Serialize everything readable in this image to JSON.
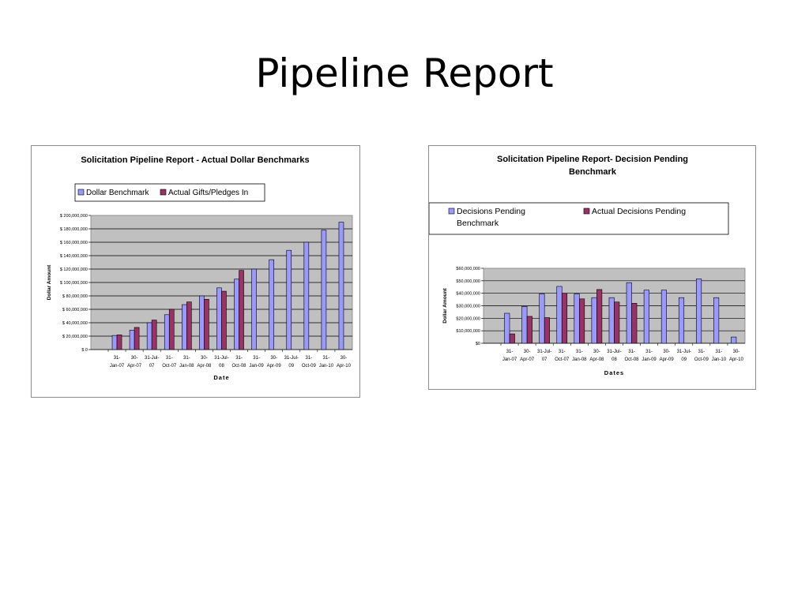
{
  "slide": {
    "title": "Pipeline Report"
  },
  "colors": {
    "benchmark": "#9999ff",
    "actual": "#993366",
    "plot_bg": "#c0c0c0"
  },
  "chart_data": [
    {
      "type": "bar",
      "title": "Solicitation Pipeline Report - Actual Dollar Benchmarks",
      "xlabel": "Date",
      "ylabel": "Dollar Amount",
      "ylim": [
        0,
        200000000
      ],
      "yticks": [
        "$ 0",
        "$ 20,000,000",
        "$ 40,000,000",
        "$ 60,000,000",
        "$ 80,000,000",
        "$ 100,000,000",
        "$ 120,000,000",
        "$ 140,000,000",
        "$ 160,000,000",
        "$ 180,000,000",
        "$ 200,000,000"
      ],
      "categories": [
        [
          "31-",
          "Jan-07"
        ],
        [
          "30-",
          "Apr-07"
        ],
        [
          "31-Jul-",
          "07"
        ],
        [
          "31-",
          "Oct-07"
        ],
        [
          "31-",
          "Jan-08"
        ],
        [
          "30-",
          "Apr-08"
        ],
        [
          "31-Jul-",
          "08"
        ],
        [
          "31-",
          "Oct-08"
        ],
        [
          "31-",
          "Jan-09"
        ],
        [
          "30-",
          "Apr-09"
        ],
        [
          "31-Jul-",
          "09"
        ],
        [
          "31-",
          "Oct-09"
        ],
        [
          "31-",
          "Jan-10"
        ],
        [
          "30-",
          "Apr-10"
        ]
      ],
      "legend_position": "top",
      "grid": true,
      "series": [
        {
          "name": "Dollar Benchmark",
          "values": [
            21000000,
            29000000,
            40000000,
            52000000,
            67000000,
            80000000,
            92000000,
            105000000,
            120000000,
            134000000,
            148000000,
            160000000,
            178000000,
            190000000
          ]
        },
        {
          "name": "Actual Gifts/Pledges In",
          "values": [
            22000000,
            33000000,
            44000000,
            60000000,
            71000000,
            75000000,
            87000000,
            118000000,
            null,
            null,
            null,
            null,
            null,
            null
          ]
        }
      ]
    },
    {
      "type": "bar",
      "title": "Solicitation Pipeline Report- Decision Pending Benchmark",
      "title_lines": [
        "Solicitation Pipeline Report- Decision Pending",
        "Benchmark"
      ],
      "xlabel": "Dates",
      "ylabel": "Dollar Amount",
      "ylim": [
        0,
        60000000
      ],
      "yticks": [
        "$0",
        "$10,000,000",
        "$20,000,000",
        "$30,000,000",
        "$40,000,000",
        "$50,000,000",
        "$60,000,000"
      ],
      "categories": [
        [
          "31-",
          "Jan-07"
        ],
        [
          "30-",
          "Apr-07"
        ],
        [
          "31-Jul-",
          "07"
        ],
        [
          "31-",
          "Oct-07"
        ],
        [
          "31-",
          "Jan-08"
        ],
        [
          "30-",
          "Apr-08"
        ],
        [
          "31-Jul-",
          "08"
        ],
        [
          "31-",
          "Oct-08"
        ],
        [
          "31-",
          "Jan-09"
        ],
        [
          "30-",
          "Apr-09"
        ],
        [
          "31-Jul-",
          "09"
        ],
        [
          "31-",
          "Oct-09"
        ],
        [
          "31-",
          "Jan-10"
        ],
        [
          "30-",
          "Apr-10"
        ]
      ],
      "legend_position": "top",
      "grid": true,
      "series": [
        {
          "name": "Decisions Pending Benchmark",
          "name_lines": [
            "Decisions Pending",
            "Benchmark"
          ],
          "values": [
            24000000,
            29500000,
            39500000,
            45500000,
            39500000,
            36500000,
            36500000,
            48500000,
            42500000,
            42500000,
            36500000,
            51500000,
            36500000,
            5000000
          ]
        },
        {
          "name": "Actual Decisions Pending",
          "values": [
            7500000,
            21500000,
            20500000,
            40000000,
            35500000,
            43000000,
            33000000,
            32000000,
            null,
            null,
            null,
            null,
            null,
            null
          ]
        }
      ]
    }
  ]
}
